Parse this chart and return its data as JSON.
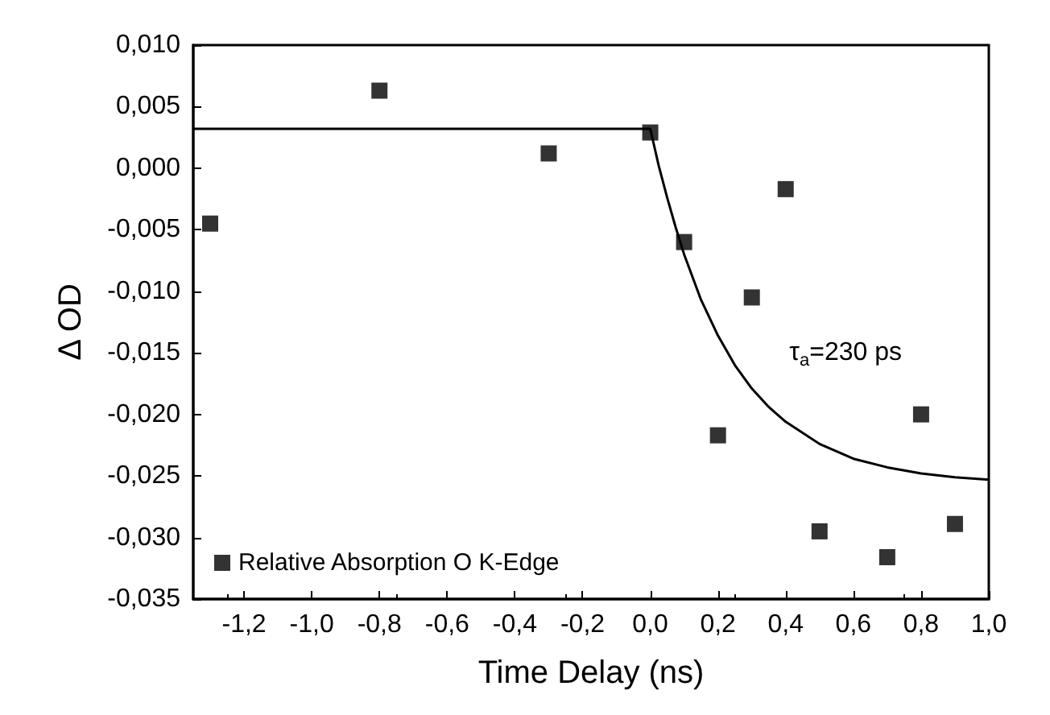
{
  "chart_data": {
    "type": "scatter",
    "xlabel": "Time Delay (ns)",
    "ylabel": "Δ OD",
    "xlim": [
      -1.35,
      1.0
    ],
    "ylim": [
      -0.035,
      0.01
    ],
    "xticks": [
      {
        "value": -1.2,
        "label": "-1,2"
      },
      {
        "value": -1.0,
        "label": "-1,0"
      },
      {
        "value": -0.8,
        "label": "-0,8"
      },
      {
        "value": -0.6,
        "label": "-0,6"
      },
      {
        "value": -0.4,
        "label": "-0,4"
      },
      {
        "value": -0.2,
        "label": "-0,2"
      },
      {
        "value": 0.0,
        "label": "0,0"
      },
      {
        "value": 0.2,
        "label": "0,2"
      },
      {
        "value": 0.4,
        "label": "0,4"
      },
      {
        "value": 0.6,
        "label": "0,6"
      },
      {
        "value": 0.8,
        "label": "0,8"
      },
      {
        "value": 1.0,
        "label": "1,0"
      }
    ],
    "yticks": [
      {
        "value": -0.035,
        "label": "-0,035"
      },
      {
        "value": -0.03,
        "label": "-0,030"
      },
      {
        "value": -0.025,
        "label": "-0,025"
      },
      {
        "value": -0.02,
        "label": "-0,020"
      },
      {
        "value": -0.015,
        "label": "-0,015"
      },
      {
        "value": -0.01,
        "label": "-0,010"
      },
      {
        "value": -0.005,
        "label": "-0,005"
      },
      {
        "value": 0.0,
        "label": "0,000"
      },
      {
        "value": 0.005,
        "label": "0,005"
      },
      {
        "value": 0.01,
        "label": "0,010"
      }
    ],
    "grid": false,
    "legend": "bottom left",
    "series": [
      {
        "name": "Relative Absorption O K-Edge",
        "marker": "square",
        "color": "#000000",
        "x": [
          -1.3,
          -0.8,
          -0.3,
          0.0,
          0.1,
          0.2,
          0.3,
          0.4,
          0.5,
          0.7,
          0.8,
          0.9
        ],
        "values": [
          -0.0045,
          0.0063,
          0.0012,
          0.0029,
          -0.006,
          -0.0217,
          -0.0105,
          -0.0017,
          -0.0295,
          -0.0316,
          -0.02,
          -0.0289
        ]
      },
      {
        "type": "line",
        "marker": "none",
        "line_style": "solid",
        "color": "#000000",
        "x": [
          -1.35,
          0.0,
          0.025,
          0.05,
          0.075,
          0.1,
          0.15,
          0.2,
          0.25,
          0.3,
          0.35,
          0.4,
          0.5,
          0.6,
          0.7,
          0.8,
          0.9,
          1.0
        ],
        "values": [
          0.0032,
          0.0032,
          0.0002,
          -0.0024,
          -0.0048,
          -0.007,
          -0.0107,
          -0.0136,
          -0.016,
          -0.0179,
          -0.0194,
          -0.0206,
          -0.0224,
          -0.0236,
          -0.0243,
          -0.0248,
          -0.0251,
          -0.0253
        ]
      }
    ],
    "annotations": [
      "τ$_{a}$=230 ps"
    ]
  }
}
